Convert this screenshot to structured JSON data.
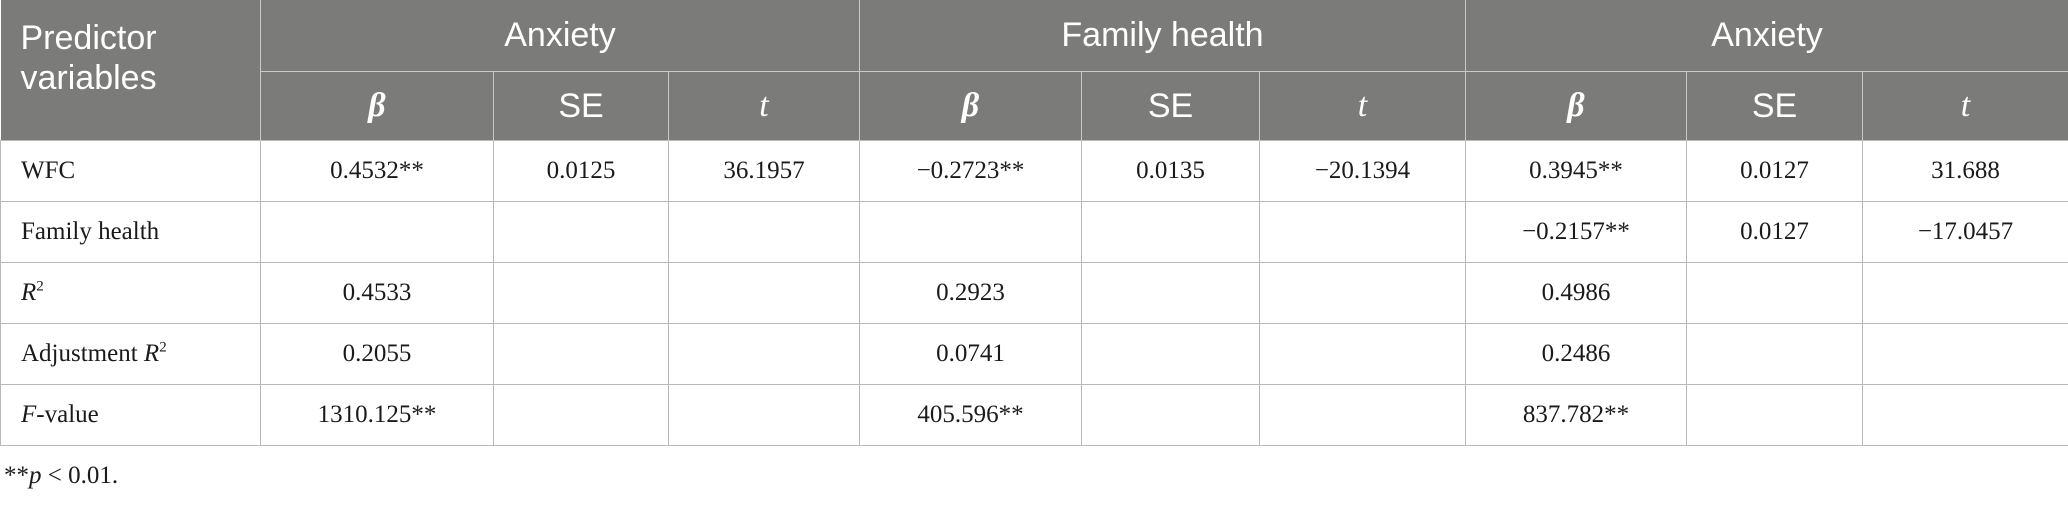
{
  "table": {
    "header": {
      "predictor": "Predictor variables",
      "groups": [
        "Anxiety",
        "Family health",
        "Anxiety"
      ],
      "sub": [
        "β",
        "SE",
        "t"
      ]
    },
    "rows": [
      {
        "label": "WFC",
        "cells": [
          "0.4532**",
          "0.0125",
          "36.1957",
          "−0.2723**",
          "0.0135",
          "−20.1394",
          "0.3945**",
          "0.0127",
          "31.688"
        ]
      },
      {
        "label": "Family health",
        "cells": [
          "",
          "",
          "",
          "",
          "",
          "",
          "−0.2157**",
          "0.0127",
          "−17.0457"
        ]
      },
      {
        "label_italic": "R",
        "label_sup": "2",
        "cells": [
          "0.4533",
          "",
          "",
          "0.2923",
          "",
          "",
          "0.4986",
          "",
          ""
        ]
      },
      {
        "label_prefix": "Adjustment ",
        "label_italic": "R",
        "label_sup": "2",
        "cells": [
          "0.2055",
          "",
          "",
          "0.0741",
          "",
          "",
          "0.2486",
          "",
          ""
        ]
      },
      {
        "label_italic": "F",
        "label_suffix": "-value",
        "cells": [
          "1310.125**",
          "",
          "",
          "405.596**",
          "",
          "",
          "837.782**",
          "",
          ""
        ]
      }
    ]
  },
  "note": {
    "stars": "**",
    "italic_p": "p",
    "rest": " < 0.01."
  }
}
